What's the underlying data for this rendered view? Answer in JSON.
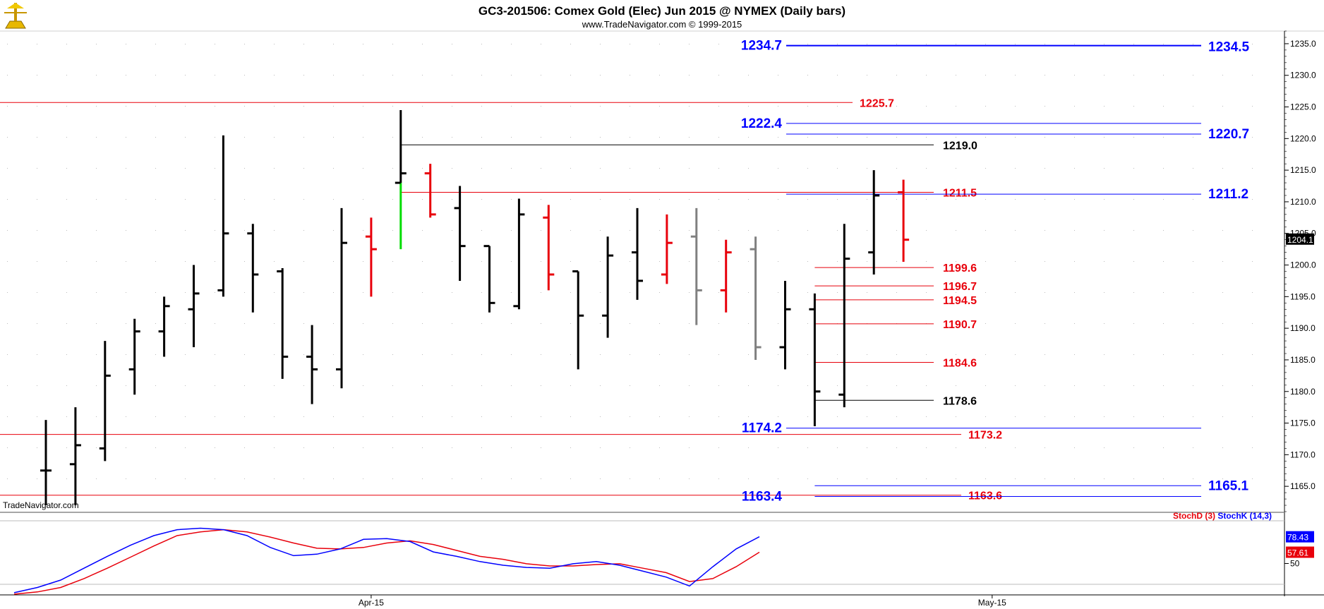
{
  "header": {
    "title": "GC3-201506:  Comex Gold (Elec) Jun 2015 @ NYMEX  (Daily bars)",
    "subtitle": "www.TradeNavigator.com © 1999-2015",
    "watermark": "TradeNavigator.com"
  },
  "colors": {
    "black": "#000000",
    "red": "#e8000b",
    "blue": "#0000ff",
    "gray": "#808080",
    "green": "#00dd00"
  },
  "chart_data": {
    "type": "ohlc",
    "ylim": [
      1161,
      1237
    ],
    "y_ticks": [
      "1165.0",
      "1170.0",
      "1175.0",
      "1180.0",
      "1185.0",
      "1190.0",
      "1195.0",
      "1200.0",
      "1205.0",
      "1210.0",
      "1215.0",
      "1220.0",
      "1225.0",
      "1230.0",
      "1235.0"
    ],
    "x_labels": [
      {
        "label": "Apr-15",
        "bar": 11
      },
      {
        "label": "May-15",
        "bar": 32
      }
    ],
    "last_price": "1204.1",
    "bars": [
      {
        "o": 1167.5,
        "h": 1175.5,
        "l": 1162.0,
        "c": 1167.5,
        "color": "black"
      },
      {
        "o": 1168.5,
        "h": 1177.5,
        "l": 1162.0,
        "c": 1171.5,
        "color": "black"
      },
      {
        "o": 1171.0,
        "h": 1188.0,
        "l": 1169.0,
        "c": 1182.5,
        "color": "black"
      },
      {
        "o": 1183.5,
        "h": 1191.5,
        "l": 1179.5,
        "c": 1189.5,
        "color": "black"
      },
      {
        "o": 1189.5,
        "h": 1195.0,
        "l": 1185.5,
        "c": 1193.5,
        "color": "black"
      },
      {
        "o": 1193.0,
        "h": 1200.0,
        "l": 1187.0,
        "c": 1195.5,
        "color": "black"
      },
      {
        "o": 1196.0,
        "h": 1220.5,
        "l": 1195.0,
        "c": 1205.0,
        "color": "black"
      },
      {
        "o": 1205.0,
        "h": 1206.5,
        "l": 1192.5,
        "c": 1198.5,
        "color": "black"
      },
      {
        "o": 1199.0,
        "h": 1199.5,
        "l": 1182.0,
        "c": 1185.5,
        "color": "black"
      },
      {
        "o": 1185.5,
        "h": 1190.5,
        "l": 1178.0,
        "c": 1183.5,
        "color": "black"
      },
      {
        "o": 1183.5,
        "h": 1209.0,
        "l": 1180.5,
        "c": 1203.5,
        "color": "black"
      },
      {
        "o": 1204.5,
        "h": 1207.5,
        "l": 1195.0,
        "c": 1202.5,
        "color": "red"
      },
      {
        "o": 1213.0,
        "h": 1224.5,
        "l": 1202.5,
        "c": 1214.5,
        "color": "black",
        "green_low": true
      },
      {
        "o": 1214.5,
        "h": 1216.0,
        "l": 1207.5,
        "c": 1208.0,
        "color": "red"
      },
      {
        "o": 1209.0,
        "h": 1212.5,
        "l": 1197.5,
        "c": 1203.0,
        "color": "black"
      },
      {
        "o": 1203.0,
        "h": 1203.0,
        "l": 1192.5,
        "c": 1194.0,
        "color": "black"
      },
      {
        "o": 1193.5,
        "h": 1210.5,
        "l": 1193.0,
        "c": 1208.0,
        "color": "black"
      },
      {
        "o": 1207.5,
        "h": 1209.5,
        "l": 1196.0,
        "c": 1198.5,
        "color": "red"
      },
      {
        "o": 1199.0,
        "h": 1199.0,
        "l": 1183.5,
        "c": 1192.0,
        "color": "black"
      },
      {
        "o": 1192.0,
        "h": 1204.5,
        "l": 1188.5,
        "c": 1201.5,
        "color": "black"
      },
      {
        "o": 1202.0,
        "h": 1209.0,
        "l": 1194.5,
        "c": 1197.5,
        "color": "black"
      },
      {
        "o": 1198.5,
        "h": 1208.0,
        "l": 1197.0,
        "c": 1203.5,
        "color": "red"
      },
      {
        "o": 1204.5,
        "h": 1209.0,
        "l": 1190.5,
        "c": 1196.0,
        "color": "gray"
      },
      {
        "o": 1196.0,
        "h": 1204.0,
        "l": 1192.5,
        "c": 1202.0,
        "color": "red"
      },
      {
        "o": 1202.5,
        "h": 1204.5,
        "l": 1185.0,
        "c": 1187.0,
        "color": "gray"
      },
      {
        "o": 1187.0,
        "h": 1197.5,
        "l": 1183.5,
        "c": 1193.0,
        "color": "black"
      },
      {
        "o": 1193.0,
        "h": 1195.5,
        "l": 1174.5,
        "c": 1180.0,
        "color": "black"
      },
      {
        "o": 1179.5,
        "h": 1206.5,
        "l": 1177.5,
        "c": 1201.0,
        "color": "black"
      },
      {
        "o": 1202.0,
        "h": 1215.0,
        "l": 1198.5,
        "c": 1211.0,
        "color": "black"
      },
      {
        "o": 1211.5,
        "h": 1213.5,
        "l": 1200.5,
        "c": 1204.0,
        "color": "red"
      }
    ],
    "levels": [
      {
        "value": 1234.7,
        "label": "1234.7",
        "label_side": "left",
        "color": "blue",
        "from_bar": "proj",
        "thick": true
      },
      {
        "value": 1234.5,
        "label": "1234.5",
        "label_side": "right",
        "color": "blue",
        "from_bar": "proj",
        "thick": true,
        "no_line": true
      },
      {
        "value": 1225.7,
        "label": "1225.7",
        "color": "red",
        "from_bar": "start",
        "to": "mid"
      },
      {
        "value": 1222.4,
        "label": "1222.4",
        "label_side": "left",
        "color": "blue",
        "from_bar": "proj"
      },
      {
        "value": 1220.7,
        "label": "1220.7",
        "label_side": "right",
        "color": "blue",
        "from_bar": "proj"
      },
      {
        "value": 1219.0,
        "label": "1219.0",
        "color": "black",
        "from_bar": 12,
        "to": "mid"
      },
      {
        "value": 1211.5,
        "label": "1211.5",
        "color": "red",
        "from_bar": 12,
        "to": "mid"
      },
      {
        "value": 1211.2,
        "label": "1211.2",
        "label_side": "right",
        "color": "blue",
        "from_bar": "proj"
      },
      {
        "value": 1199.6,
        "label": "1199.6",
        "color": "red",
        "from_bar": 26,
        "to": "mid"
      },
      {
        "value": 1196.7,
        "label": "1196.7",
        "color": "red",
        "from_bar": 26,
        "to": "mid"
      },
      {
        "value": 1194.5,
        "label": "1194.5",
        "color": "red",
        "from_bar": 26,
        "to": "mid"
      },
      {
        "value": 1190.7,
        "label": "1190.7",
        "color": "red",
        "from_bar": 26,
        "to": "mid"
      },
      {
        "value": 1184.6,
        "label": "1184.6",
        "color": "red",
        "from_bar": 26,
        "to": "mid"
      },
      {
        "value": 1178.6,
        "label": "1178.6",
        "color": "black",
        "from_bar": 26,
        "to": "mid"
      },
      {
        "value": 1174.2,
        "label": "1174.2",
        "label_side": "left",
        "color": "blue",
        "from_bar": "proj"
      },
      {
        "value": 1173.2,
        "label": "1173.2",
        "color": "red",
        "from_bar": "start",
        "to": "mid"
      },
      {
        "value": 1165.1,
        "label": "1165.1",
        "label_side": "right",
        "color": "blue",
        "from_bar": 26
      },
      {
        "value": 1163.6,
        "label": "1163.6",
        "color": "red",
        "from_bar": "start",
        "to": "mid"
      },
      {
        "value": 1163.4,
        "label": "1163.4",
        "label_side": "left",
        "color": "blue",
        "from_bar": 26
      }
    ],
    "indicator": {
      "legend": [
        {
          "text": "StochD (3)",
          "color": "red"
        },
        {
          "text": "StochK (14,3)",
          "color": "blue"
        }
      ],
      "values_shown": [
        {
          "text": "78.43",
          "color": "blue",
          "value": 78.43
        },
        {
          "text": "57.61",
          "color": "red",
          "value": 57.61
        }
      ],
      "tick": "50",
      "ylim": [
        0,
        100
      ],
      "stoch_k": [
        3,
        10,
        20,
        36,
        52,
        67,
        80,
        88,
        90,
        88,
        80,
        64,
        53,
        55,
        62,
        75,
        76,
        72,
        58,
        52,
        45,
        40,
        37,
        36,
        42,
        45,
        40,
        32,
        24,
        12,
        38,
        62,
        78.43
      ],
      "stoch_d": [
        1,
        4,
        10,
        22,
        36,
        51,
        66,
        80,
        85,
        88,
        85,
        78,
        70,
        63,
        62,
        64,
        70,
        73,
        68,
        60,
        52,
        48,
        42,
        39,
        39,
        41,
        42,
        36,
        30,
        18,
        22,
        38,
        57.61
      ]
    }
  }
}
